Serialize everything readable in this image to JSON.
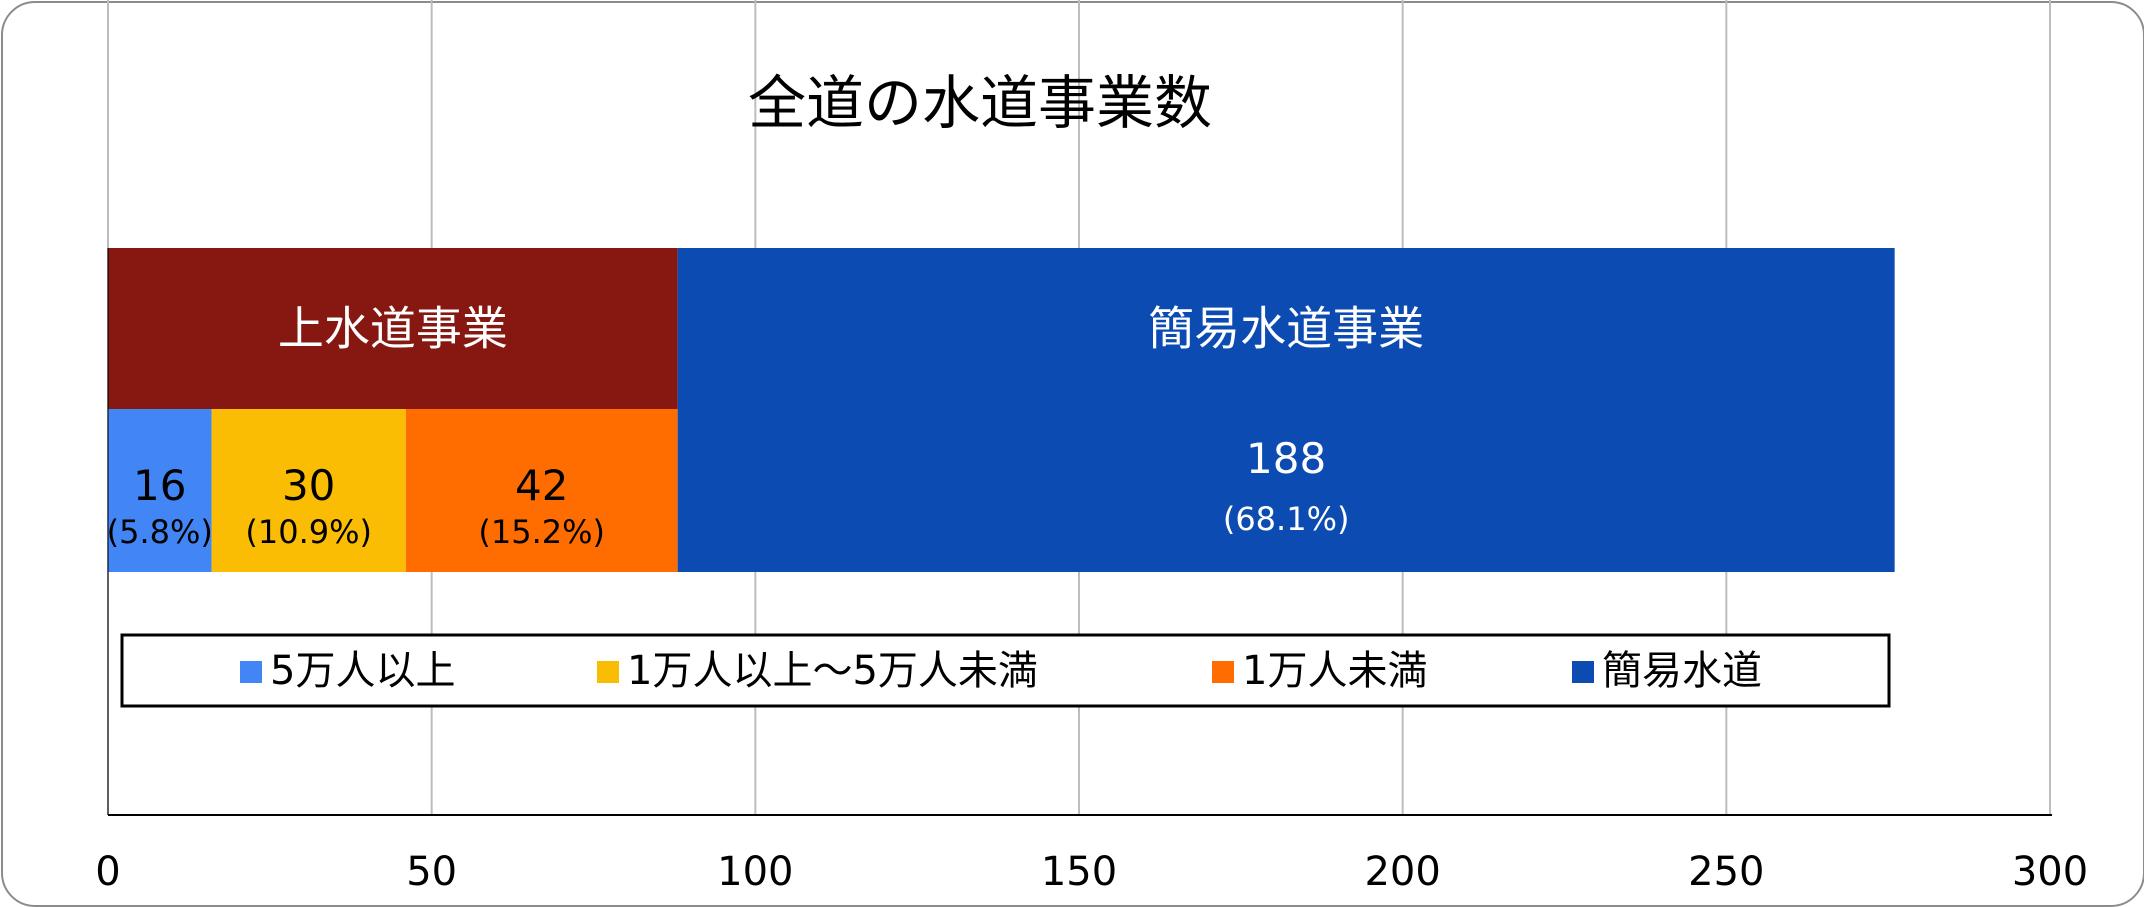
{
  "chart_data": {
    "type": "bar",
    "orientation": "horizontal",
    "stacked": true,
    "title": "全道の水道事業数",
    "xlim": [
      0,
      300
    ],
    "x_ticks": [
      "0",
      "50",
      "100",
      "150",
      "200",
      "250",
      "300"
    ],
    "grid": true,
    "legend_position": "bottom",
    "series": [
      {
        "name": "5万人以上",
        "value": 16,
        "label": "16",
        "pct": "(5.8%)",
        "color": "#4286F5",
        "text_color": "#000000"
      },
      {
        "name": "1万人以上～5万人未満",
        "value": 30,
        "label": "30",
        "pct": "(10.9%)",
        "color": "#FBBC04",
        "text_color": "#000000"
      },
      {
        "name": "1万人未満",
        "value": 42,
        "label": "42",
        "pct": "(15.2%)",
        "color": "#FF6D01",
        "text_color": "#000000"
      },
      {
        "name": "簡易水道",
        "value": 188,
        "label": "188",
        "pct": "(68.1%)",
        "color": "#0B4BB2",
        "text_color": "#ffffff"
      }
    ],
    "groups": [
      {
        "name": "上水道事業",
        "value": 88,
        "color": "#861811",
        "text_color": "#ffffff"
      },
      {
        "name": "簡易水道事業",
        "value": 188,
        "color": "#0B4BB2",
        "text_color": "#ffffff"
      }
    ]
  }
}
